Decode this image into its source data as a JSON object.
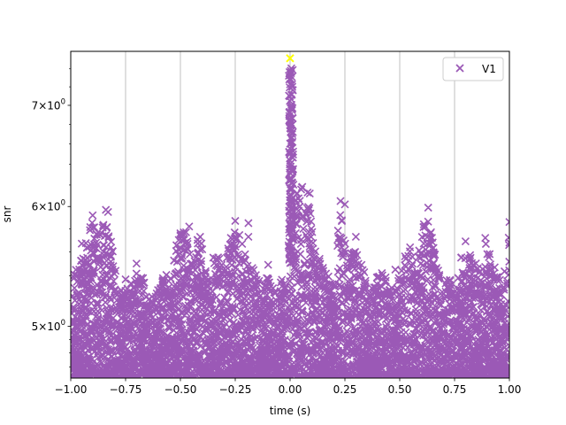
{
  "chart_data": {
    "type": "scatter",
    "xlabel": "time (s)",
    "ylabel": "snr",
    "xlim": [
      -1.0,
      1.0
    ],
    "ylim": [
      4.62,
      7.6
    ],
    "yscale": "log",
    "grid": "x-axis vertical lines",
    "legend_position": "top-right",
    "x_ticks": [
      -1.0,
      -0.75,
      -0.5,
      -0.25,
      0.0,
      0.25,
      0.5,
      0.75,
      1.0
    ],
    "x_tick_labels": [
      "−1.00",
      "−0.75",
      "−0.50",
      "−0.25",
      "0.00",
      "0.25",
      "0.50",
      "0.75",
      "1.00"
    ],
    "y_ticks": [
      5,
      6,
      7
    ],
    "y_tick_labels": [
      {
        "base": "5",
        "exp": "0"
      },
      {
        "base": "6",
        "exp": "0"
      },
      {
        "base": "7",
        "exp": "0"
      }
    ],
    "series": [
      {
        "name": "V1",
        "marker": "x",
        "color": "#9b59b6",
        "baseline_range": [
          4.62,
          5.3
        ],
        "envelope": [
          [
            -1.0,
            5.05
          ],
          [
            -0.98,
            5.55
          ],
          [
            -0.95,
            5.55
          ],
          [
            -0.92,
            5.75
          ],
          [
            -0.9,
            5.9
          ],
          [
            -0.88,
            5.75
          ],
          [
            -0.86,
            5.85
          ],
          [
            -0.84,
            5.95
          ],
          [
            -0.82,
            5.8
          ],
          [
            -0.8,
            5.5
          ],
          [
            -0.78,
            5.35
          ],
          [
            -0.75,
            5.3
          ],
          [
            -0.72,
            5.35
          ],
          [
            -0.7,
            5.45
          ],
          [
            -0.67,
            5.4
          ],
          [
            -0.65,
            5.2
          ],
          [
            -0.62,
            5.25
          ],
          [
            -0.6,
            5.3
          ],
          [
            -0.57,
            5.45
          ],
          [
            -0.55,
            5.35
          ],
          [
            -0.52,
            5.7
          ],
          [
            -0.5,
            5.75
          ],
          [
            -0.48,
            5.85
          ],
          [
            -0.46,
            5.6
          ],
          [
            -0.44,
            5.5
          ],
          [
            -0.42,
            5.75
          ],
          [
            -0.4,
            5.65
          ],
          [
            -0.38,
            5.45
          ],
          [
            -0.36,
            5.4
          ],
          [
            -0.34,
            5.6
          ],
          [
            -0.32,
            5.55
          ],
          [
            -0.3,
            5.4
          ],
          [
            -0.28,
            5.7
          ],
          [
            -0.25,
            5.85
          ],
          [
            -0.22,
            5.8
          ],
          [
            -0.2,
            5.5
          ],
          [
            -0.18,
            5.55
          ],
          [
            -0.15,
            5.4
          ],
          [
            -0.12,
            5.35
          ],
          [
            -0.1,
            5.4
          ],
          [
            -0.08,
            5.3
          ],
          [
            -0.05,
            5.4
          ],
          [
            -0.03,
            5.35
          ],
          [
            -0.01,
            5.4
          ],
          [
            0.0,
            7.5
          ],
          [
            0.005,
            7.2
          ],
          [
            0.01,
            6.8
          ],
          [
            0.015,
            6.4
          ],
          [
            0.02,
            6.1
          ],
          [
            0.04,
            6.15
          ],
          [
            0.06,
            6.2
          ],
          [
            0.08,
            6.05
          ],
          [
            0.1,
            5.9
          ],
          [
            0.12,
            5.6
          ],
          [
            0.15,
            5.5
          ],
          [
            0.18,
            5.4
          ],
          [
            0.2,
            5.3
          ],
          [
            0.22,
            5.85
          ],
          [
            0.24,
            6.05
          ],
          [
            0.26,
            5.5
          ],
          [
            0.28,
            5.6
          ],
          [
            0.3,
            5.75
          ],
          [
            0.32,
            5.55
          ],
          [
            0.35,
            5.35
          ],
          [
            0.38,
            5.3
          ],
          [
            0.4,
            5.45
          ],
          [
            0.42,
            5.5
          ],
          [
            0.45,
            5.3
          ],
          [
            0.48,
            5.3
          ],
          [
            0.5,
            5.45
          ],
          [
            0.52,
            5.55
          ],
          [
            0.55,
            5.7
          ],
          [
            0.57,
            5.8
          ],
          [
            0.59,
            5.6
          ],
          [
            0.61,
            5.85
          ],
          [
            0.63,
            5.95
          ],
          [
            0.65,
            5.7
          ],
          [
            0.67,
            5.5
          ],
          [
            0.7,
            5.3
          ],
          [
            0.72,
            5.4
          ],
          [
            0.75,
            5.3
          ],
          [
            0.78,
            5.55
          ],
          [
            0.8,
            5.65
          ],
          [
            0.83,
            5.55
          ],
          [
            0.86,
            5.5
          ],
          [
            0.89,
            5.7
          ],
          [
            0.91,
            5.55
          ],
          [
            0.93,
            5.5
          ],
          [
            0.96,
            5.35
          ],
          [
            0.98,
            5.5
          ],
          [
            1.0,
            5.8
          ]
        ],
        "outliers": [
          [
            -0.95,
            5.67
          ],
          [
            -0.9,
            5.92
          ],
          [
            -0.88,
            5.75
          ],
          [
            -0.84,
            5.97
          ],
          [
            -0.83,
            5.95
          ],
          [
            -0.75,
            5.37
          ],
          [
            -0.7,
            5.5
          ],
          [
            -0.5,
            5.76
          ],
          [
            -0.46,
            5.82
          ],
          [
            -0.41,
            5.73
          ],
          [
            -0.35,
            5.55
          ],
          [
            -0.27,
            5.72
          ],
          [
            -0.25,
            5.87
          ],
          [
            -0.19,
            5.85
          ],
          [
            -0.19,
            5.73
          ],
          [
            -0.1,
            5.49
          ],
          [
            0.08,
            6.13
          ],
          [
            0.09,
            6.12
          ],
          [
            0.23,
            6.05
          ],
          [
            0.25,
            6.02
          ],
          [
            0.3,
            5.73
          ],
          [
            0.48,
            5.45
          ],
          [
            0.61,
            5.84
          ],
          [
            0.63,
            5.99
          ],
          [
            0.78,
            5.55
          ],
          [
            0.8,
            5.69
          ],
          [
            0.89,
            5.72
          ],
          [
            0.91,
            5.58
          ],
          [
            1.0,
            5.86
          ],
          [
            1.0,
            5.68
          ]
        ]
      }
    ],
    "highlight": {
      "x": 0.0,
      "y": 7.52,
      "color": "#ffff00"
    }
  }
}
